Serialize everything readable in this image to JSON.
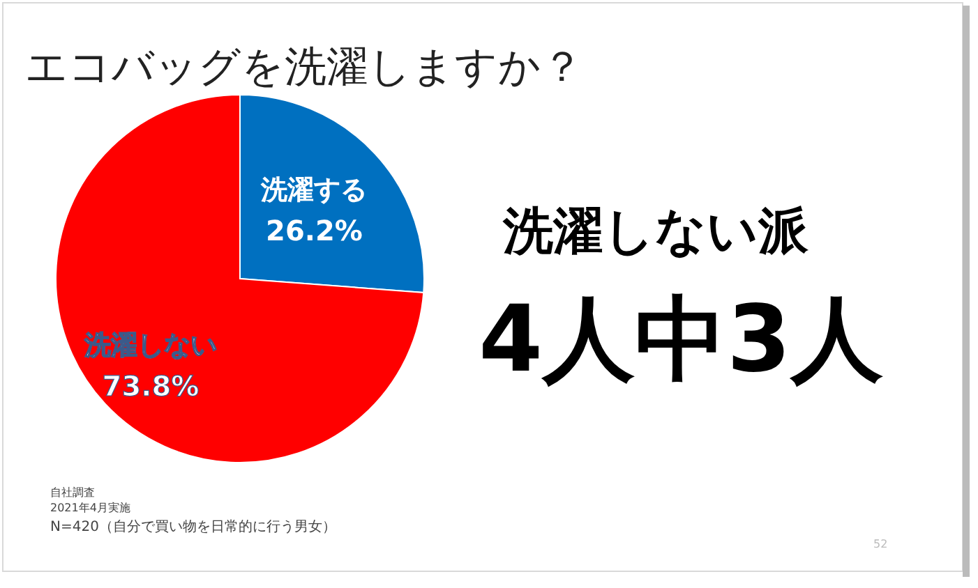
{
  "chart_data": {
    "type": "pie",
    "title": "エコバッグを洗濯しますか？",
    "categories": [
      "洗濯する",
      "洗濯しない"
    ],
    "values": [
      26.2,
      73.8
    ],
    "colors": [
      "#0070c0",
      "#ff0000"
    ],
    "value_labels": [
      "26.2%",
      "73.8%"
    ],
    "legend": false,
    "annotations": [
      "洗濯しない派",
      "4人中3人",
      "自社調査",
      "2021年4月実施",
      "N=420（自分で買い物を日常的に行う男女）",
      "52"
    ]
  }
}
